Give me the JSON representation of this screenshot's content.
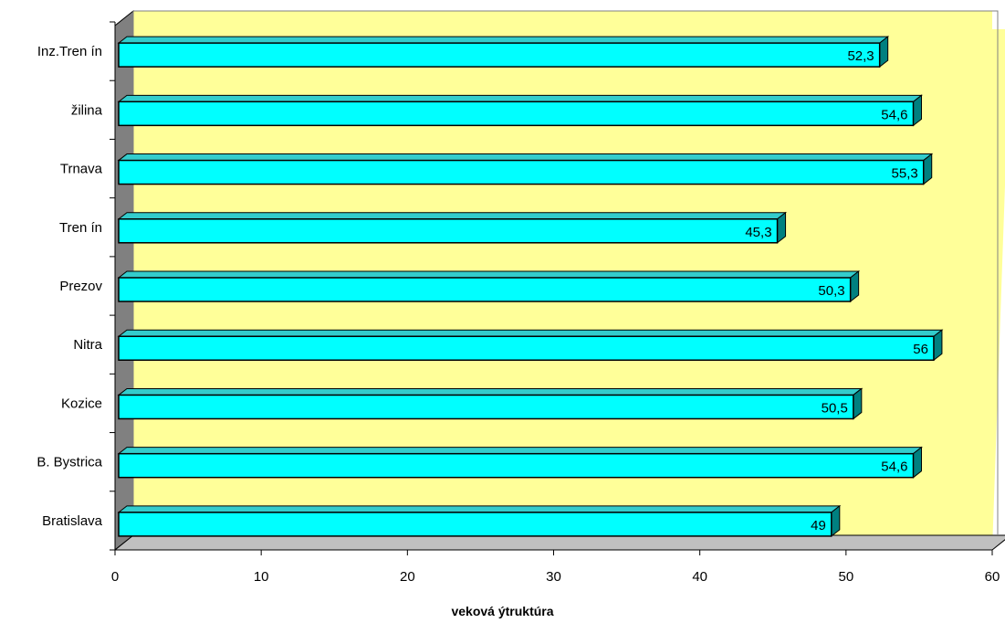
{
  "chart_data": {
    "type": "bar",
    "orientation": "horizontal",
    "style": "3d",
    "categories": [
      "Bratislava",
      "B. Bystrica",
      "Kozice",
      "Nitra",
      "Prezov",
      "Tren ín",
      "Trnava",
      "žilina",
      "Inz.Tren ín"
    ],
    "values": [
      49,
      54.6,
      50.5,
      56,
      50.3,
      45.3,
      55.3,
      54.6,
      52.3
    ],
    "data_labels": [
      "49",
      "54,6",
      "50,5",
      "56",
      "50,3",
      "45,3",
      "55,3",
      "54,6",
      "52,3"
    ],
    "xlabel": "veková ýtruktúra",
    "xlim": [
      0,
      60
    ],
    "xticks": [
      0,
      10,
      20,
      30,
      40,
      50,
      60
    ],
    "grid": false,
    "colors": {
      "bar_face": "#00FFFF",
      "bar_top": "#33CCCC",
      "bar_side": "#008080",
      "wall": "#FFFF99",
      "side_wall": "#808080",
      "outline": "#000000"
    }
  }
}
